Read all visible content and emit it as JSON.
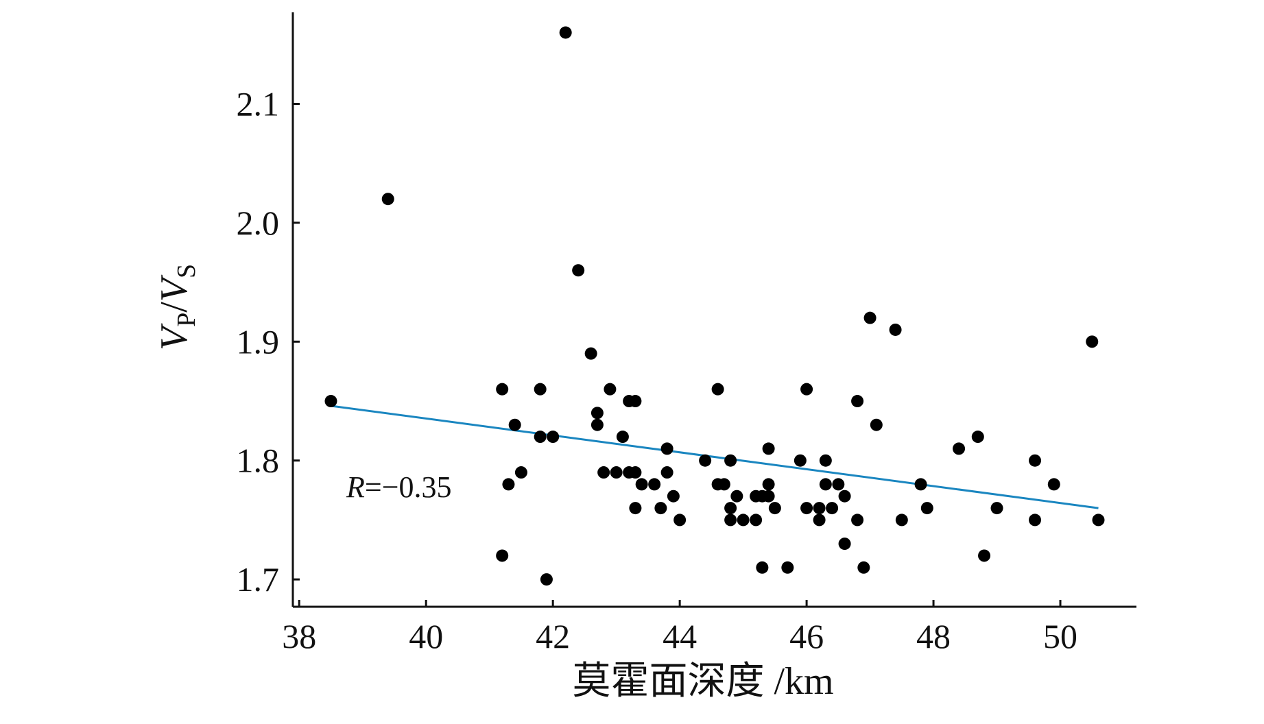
{
  "chart_data": {
    "type": "scatter",
    "title": "",
    "xlabel": "莫霍面深度 /km",
    "ylabel": {
      "v1": "V",
      "sub1": "P",
      "slash": "/",
      "v2": "V",
      "sub2": "S"
    },
    "xlim": [
      37.9,
      51.2
    ],
    "ylim": [
      1.677,
      2.177
    ],
    "x_ticks": [
      38,
      40,
      42,
      44,
      46,
      48,
      50
    ],
    "y_ticks": [
      1.7,
      1.8,
      1.9,
      2.0,
      2.1
    ],
    "x_tick_labels": [
      "38",
      "40",
      "42",
      "44",
      "46",
      "48",
      "50"
    ],
    "y_tick_labels": [
      "1.7",
      "1.8",
      "1.9",
      "2.0",
      "2.1"
    ],
    "grid": false,
    "points": [
      [
        38.5,
        1.85
      ],
      [
        39.4,
        2.02
      ],
      [
        41.2,
        1.86
      ],
      [
        41.2,
        1.72
      ],
      [
        41.3,
        1.78
      ],
      [
        41.4,
        1.83
      ],
      [
        41.5,
        1.79
      ],
      [
        41.8,
        1.86
      ],
      [
        41.8,
        1.82
      ],
      [
        41.9,
        1.7
      ],
      [
        42.0,
        1.82
      ],
      [
        42.2,
        2.16
      ],
      [
        42.4,
        1.96
      ],
      [
        42.6,
        1.89
      ],
      [
        42.7,
        1.84
      ],
      [
        42.7,
        1.83
      ],
      [
        42.8,
        1.79
      ],
      [
        42.9,
        1.86
      ],
      [
        43.0,
        1.79
      ],
      [
        43.1,
        1.82
      ],
      [
        43.2,
        1.85
      ],
      [
        43.2,
        1.79
      ],
      [
        43.3,
        1.85
      ],
      [
        43.3,
        1.79
      ],
      [
        43.3,
        1.76
      ],
      [
        43.4,
        1.78
      ],
      [
        43.6,
        1.78
      ],
      [
        43.7,
        1.76
      ],
      [
        43.8,
        1.81
      ],
      [
        43.8,
        1.79
      ],
      [
        43.9,
        1.77
      ],
      [
        44.0,
        1.75
      ],
      [
        44.4,
        1.8
      ],
      [
        44.6,
        1.86
      ],
      [
        44.6,
        1.78
      ],
      [
        44.7,
        1.78
      ],
      [
        44.8,
        1.8
      ],
      [
        44.8,
        1.76
      ],
      [
        44.8,
        1.75
      ],
      [
        44.9,
        1.77
      ],
      [
        45.0,
        1.75
      ],
      [
        45.2,
        1.77
      ],
      [
        45.2,
        1.75
      ],
      [
        45.3,
        1.77
      ],
      [
        45.3,
        1.71
      ],
      [
        45.4,
        1.81
      ],
      [
        45.4,
        1.78
      ],
      [
        45.4,
        1.77
      ],
      [
        45.5,
        1.76
      ],
      [
        45.7,
        1.71
      ],
      [
        45.9,
        1.8
      ],
      [
        46.0,
        1.86
      ],
      [
        46.0,
        1.76
      ],
      [
        46.2,
        1.76
      ],
      [
        46.2,
        1.75
      ],
      [
        46.3,
        1.8
      ],
      [
        46.3,
        1.78
      ],
      [
        46.4,
        1.76
      ],
      [
        46.5,
        1.78
      ],
      [
        46.6,
        1.77
      ],
      [
        46.6,
        1.73
      ],
      [
        46.8,
        1.85
      ],
      [
        46.8,
        1.75
      ],
      [
        46.9,
        1.71
      ],
      [
        47.0,
        1.92
      ],
      [
        47.1,
        1.83
      ],
      [
        47.4,
        1.91
      ],
      [
        47.5,
        1.75
      ],
      [
        47.8,
        1.78
      ],
      [
        47.9,
        1.76
      ],
      [
        48.4,
        1.81
      ],
      [
        48.7,
        1.82
      ],
      [
        48.8,
        1.72
      ],
      [
        49.0,
        1.76
      ],
      [
        49.6,
        1.8
      ],
      [
        49.6,
        1.75
      ],
      [
        49.9,
        1.78
      ],
      [
        50.5,
        1.9
      ],
      [
        50.6,
        1.75
      ]
    ],
    "trendline": {
      "x": [
        38.5,
        50.6
      ],
      "y": [
        1.846,
        1.76
      ],
      "color": "#1a86c0"
    },
    "annotation": {
      "italic": "R",
      "rest": "=−0.35"
    },
    "marker_color": "#000000"
  }
}
